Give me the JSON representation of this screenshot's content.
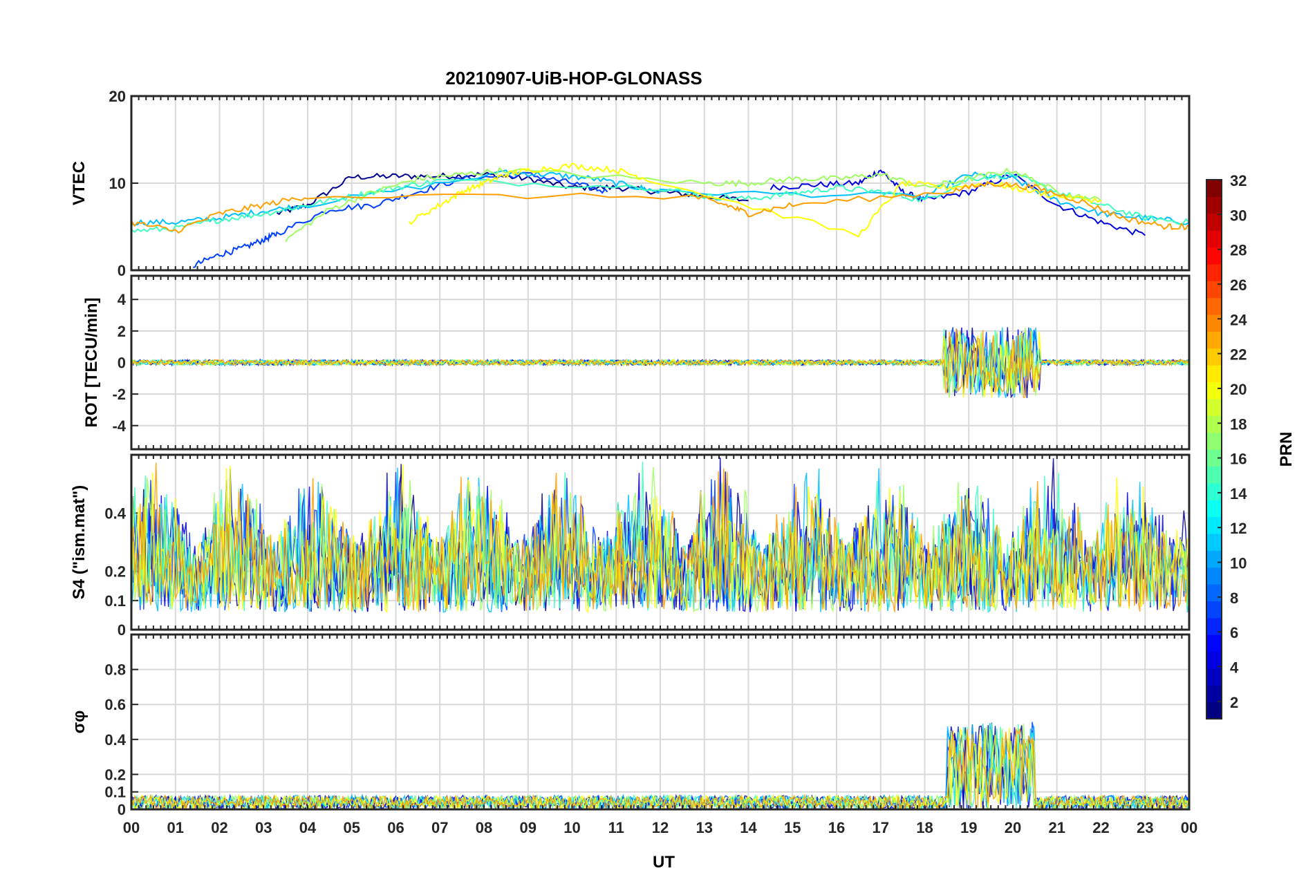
{
  "chart_data": {
    "type": "line",
    "title": "20210907-UiB-HOP-GLONASS",
    "xlabel": "UT",
    "x_tick_labels": [
      "00",
      "01",
      "02",
      "03",
      "04",
      "05",
      "06",
      "07",
      "08",
      "09",
      "10",
      "11",
      "12",
      "13",
      "14",
      "15",
      "16",
      "17",
      "18",
      "19",
      "20",
      "21",
      "22",
      "23",
      "00"
    ],
    "xlim": [
      0,
      24
    ],
    "colorbar": {
      "label": "PRN",
      "colormap": "jet",
      "range": [
        1,
        32
      ],
      "tick_labels": [
        "2",
        "4",
        "6",
        "8",
        "10",
        "12",
        "14",
        "16",
        "18",
        "20",
        "22",
        "24",
        "26",
        "28",
        "30",
        "32"
      ]
    },
    "panels": [
      {
        "name": "vtec",
        "ylabel": "VTEC",
        "ylim": [
          0,
          20
        ],
        "y_tick_labels": [
          "0",
          "10",
          "20"
        ],
        "series": [
          {
            "name": "PRN 2",
            "color": "#00008f",
            "x": [
              3.3,
              4.0,
              5.0,
              6.0,
              7.0,
              8.0,
              9.0,
              10.0,
              11.0,
              12.0,
              13.0,
              14.0
            ],
            "y": [
              6.5,
              7.5,
              10.7,
              10.8,
              10.8,
              11.0,
              10.5,
              9.5,
              9.5,
              9.0,
              8.5,
              8.0
            ]
          },
          {
            "name": "PRN 4",
            "color": "#0000df",
            "x": [
              14.5,
              15.5,
              16.5,
              17.0,
              17.5,
              18.0,
              19.0,
              20.0,
              21.0,
              22.0,
              23.0
            ],
            "y": [
              9.5,
              9.8,
              10.0,
              11.5,
              9.0,
              8.0,
              9.0,
              11.0,
              7.5,
              5.5,
              4.0
            ]
          },
          {
            "name": "PRN 7",
            "color": "#0040ff",
            "x": [
              1.4,
              2.0,
              2.5,
              3.0,
              3.3,
              4.5,
              5.5,
              6.5,
              7.5,
              9.0,
              10.0,
              10.8
            ],
            "y": [
              0.5,
              1.8,
              2.5,
              3.5,
              4.2,
              7.0,
              7.5,
              9.0,
              10.5,
              11.0,
              10.0,
              9.0
            ]
          },
          {
            "name": "PRN 11",
            "color": "#00bfff",
            "x": [
              0.0,
              1.0,
              2.0,
              3.0,
              4.0,
              8.5,
              9.5,
              10.5,
              11.5,
              12.0,
              18.0,
              19.0,
              20.0,
              21.0,
              22.0,
              23.0,
              24.0
            ],
            "y": [
              5.5,
              5.5,
              6.0,
              6.8,
              7.5,
              11.2,
              11.0,
              10.5,
              9.5,
              9.0,
              8.5,
              11.0,
              10.5,
              8.0,
              6.5,
              6.0,
              5.5
            ]
          },
          {
            "name": "PRN 14",
            "color": "#40ffbf",
            "x": [
              0.0,
              1.0,
              2.0,
              3.0,
              4.0,
              5.0,
              6.0,
              7.0,
              12.0,
              13.0,
              14.0,
              15.0,
              16.0,
              17.0,
              18.0,
              19.0,
              20.0,
              21.0,
              22.0,
              23.0,
              24.0
            ],
            "y": [
              4.5,
              4.8,
              5.8,
              6.5,
              7.5,
              8.5,
              9.5,
              10.3,
              9.5,
              8.5,
              8.2,
              8.8,
              9.5,
              9.0,
              8.0,
              10.5,
              11.0,
              9.0,
              7.5,
              6.0,
              5.5
            ]
          },
          {
            "name": "PRN 17",
            "color": "#9fff60",
            "x": [
              3.5,
              4.5,
              5.5,
              6.5,
              7.5,
              8.5,
              13.0,
              14.0,
              15.0,
              16.0,
              17.0,
              18.0,
              19.0,
              20.0,
              21.0,
              22.0
            ],
            "y": [
              3.5,
              7.0,
              9.0,
              10.5,
              11.0,
              11.5,
              10.0,
              10.0,
              10.5,
              10.5,
              11.0,
              9.5,
              10.5,
              11.5,
              9.0,
              8.0
            ]
          },
          {
            "name": "PRN 20",
            "color": "#ffff00",
            "x": [
              6.3,
              7.0,
              7.5,
              8.0,
              8.5,
              9.0,
              10.0,
              11.0,
              11.7,
              16.5,
              17.5,
              18.5,
              19.5,
              20.0,
              21.0,
              22.0
            ],
            "y": [
              5.5,
              7.5,
              9.0,
              10.0,
              11.0,
              11.5,
              12.0,
              11.5,
              10.5,
              4.0,
              10.0,
              9.5,
              10.0,
              9.5,
              8.5,
              8.0
            ]
          },
          {
            "name": "PRN 23",
            "color": "#ff9f00",
            "x": [
              0.0,
              1.0,
              2.0,
              3.0,
              4.0,
              12.7,
              13.5,
              14.0,
              15.0,
              18.5,
              19.5,
              20.5,
              21.5,
              22.5,
              23.5,
              24.0
            ],
            "y": [
              5.5,
              4.5,
              6.5,
              7.5,
              8.5,
              8.5,
              7.5,
              6.5,
              7.5,
              9.0,
              10.0,
              9.5,
              8.0,
              6.0,
              5.0,
              5.0
            ]
          }
        ]
      },
      {
        "name": "rot",
        "ylabel": "ROT [TECU/min]",
        "ylim": [
          -5.5,
          5.5
        ],
        "y_tick_labels": [
          "-4",
          "-2",
          "0",
          "2",
          "4"
        ]
      },
      {
        "name": "s4",
        "ylabel": "S4 (\"ism.mat\")",
        "ylim": [
          0,
          0.6
        ],
        "y_tick_labels": [
          "0",
          "0.1",
          "0.2",
          "0.4"
        ]
      },
      {
        "name": "sigma",
        "ylabel": "σφ",
        "ylim": [
          0,
          1
        ],
        "y_tick_labels": [
          "0",
          "0.1",
          "0.2",
          "0.4",
          "0.6",
          "0.8"
        ]
      }
    ]
  }
}
